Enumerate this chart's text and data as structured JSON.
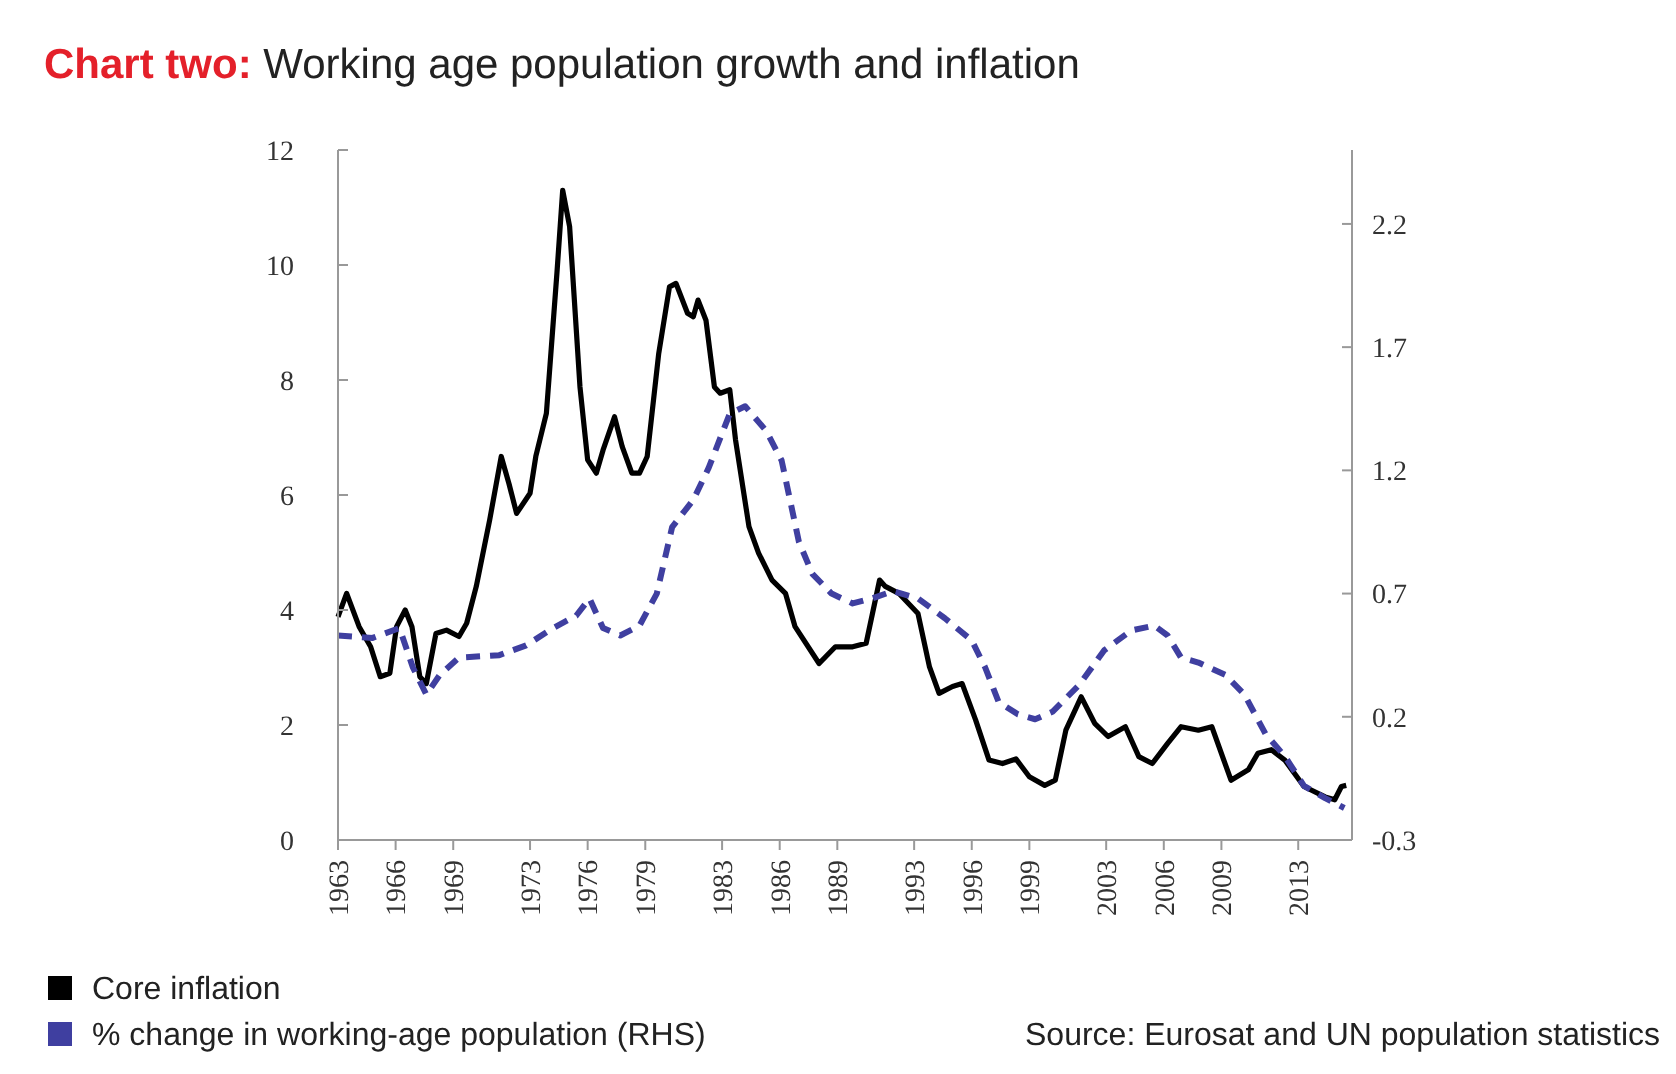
{
  "chart_data": {
    "type": "line",
    "title": "Chart two: Working age population growth and inflation",
    "xlim": [
      1963,
      2015.8
    ],
    "xticks": [
      1963,
      1966,
      1969,
      1973,
      1976,
      1979,
      1983,
      1986,
      1989,
      1993,
      1996,
      1999,
      2003,
      2006,
      2009,
      2013
    ],
    "ylim": [
      0,
      12
    ],
    "yticks": [
      0,
      2,
      4,
      6,
      8,
      10,
      12
    ],
    "y2lim": [
      -0.3,
      2.5
    ],
    "y2ticks": [
      -0.3,
      0.2,
      0.7,
      1.2,
      1.7,
      2.2
    ],
    "legend": "bottom",
    "grid": false,
    "annotations": [
      "Source: Eurosat and UN population statistics"
    ],
    "series": [
      {
        "name": "Core inflation",
        "color": "#000000",
        "line_style": "solid",
        "x": [
          1963.0,
          1963.45,
          1964.1,
          1964.7,
          1965.2,
          1965.7,
          1966.05,
          1966.5,
          1966.85,
          1967.26,
          1967.6,
          1968.1,
          1968.65,
          1969.3,
          1969.7,
          1970.2,
          1970.9,
          1971.5,
          1971.9,
          1972.3,
          1973.0,
          1973.3,
          1973.85,
          1974.4,
          1974.7,
          1975.06,
          1975.6,
          1976.0,
          1976.45,
          1976.8,
          1977.4,
          1977.8,
          1978.3,
          1978.7,
          1979.1,
          1979.7,
          1980.26,
          1980.6,
          1981.2,
          1981.5,
          1981.75,
          1982.16,
          1982.6,
          1982.9,
          1983.4,
          1983.7,
          1984.4,
          1984.9,
          1985.6,
          1986.3,
          1986.8,
          1988.05,
          1988.9,
          1989.8,
          1990.5,
          1991.2,
          1991.5,
          1992.2,
          1993.2,
          1993.8,
          1994.3,
          1995.0,
          1995.5,
          1996.2,
          1996.9,
          1997.6,
          1998.3,
          1999.0,
          1999.8,
          2000.35,
          2000.9,
          2001.7,
          2002.4,
          2003.1,
          2004.0,
          2004.7,
          2005.4,
          2006.2,
          2006.9,
          2007.8,
          2008.5,
          2009.5,
          2010.4,
          2010.9,
          2011.6,
          2012.3,
          2013.3,
          2014.4,
          2014.9,
          2015.25,
          2015.5
        ],
        "values": [
          3.88,
          4.29,
          3.71,
          3.36,
          2.84,
          2.9,
          3.71,
          4.0,
          3.71,
          2.84,
          2.72,
          3.59,
          3.65,
          3.54,
          3.77,
          4.41,
          5.57,
          6.67,
          6.2,
          5.68,
          6.03,
          6.67,
          7.42,
          9.86,
          11.3,
          10.67,
          7.88,
          6.61,
          6.38,
          6.78,
          7.36,
          6.84,
          6.38,
          6.38,
          6.67,
          8.46,
          9.62,
          9.68,
          9.16,
          9.1,
          9.39,
          9.04,
          7.88,
          7.77,
          7.83,
          6.96,
          5.45,
          4.99,
          4.52,
          4.29,
          3.71,
          3.07,
          3.36,
          3.36,
          3.42,
          4.52,
          4.41,
          4.29,
          3.94,
          3.01,
          2.55,
          2.67,
          2.72,
          2.09,
          1.39,
          1.33,
          1.41,
          1.1,
          0.95,
          1.04,
          1.91,
          2.49,
          2.03,
          1.8,
          1.97,
          1.45,
          1.33,
          1.68,
          1.97,
          1.91,
          1.97,
          1.04,
          1.22,
          1.51,
          1.57,
          1.39,
          0.93,
          0.75,
          0.7,
          0.93,
          0.95
        ]
      },
      {
        "name": "% change in working-age population (RHS)",
        "color": "#3f3fa0",
        "line_style": "dashed",
        "axis": "y2",
        "x": [
          1963.0,
          1964.8,
          1966.2,
          1966.9,
          1967.6,
          1968.3,
          1969.3,
          1971.4,
          1972.8,
          1974.2,
          1975.4,
          1976.1,
          1976.8,
          1977.7,
          1978.7,
          1979.6,
          1980.4,
          1981.5,
          1982.3,
          1983.4,
          1984.2,
          1985.3,
          1986.1,
          1987.0,
          1987.7,
          1988.7,
          1989.8,
          1990.8,
          1991.9,
          1993.2,
          1994.6,
          1996.0,
          1996.7,
          1997.4,
          1998.4,
          1999.3,
          2000.2,
          2001.6,
          2002.9,
          2004.3,
          2005.5,
          2006.2,
          2006.9,
          2007.8,
          2009.2,
          2010.2,
          2011.3,
          2012.3,
          2013.3,
          2014.4,
          2015.4
        ],
        "values": [
          0.53,
          0.52,
          0.56,
          0.4,
          0.29,
          0.37,
          0.44,
          0.45,
          0.49,
          0.56,
          0.61,
          0.68,
          0.56,
          0.53,
          0.57,
          0.7,
          0.97,
          1.08,
          1.21,
          1.43,
          1.46,
          1.36,
          1.24,
          0.91,
          0.78,
          0.7,
          0.66,
          0.68,
          0.71,
          0.68,
          0.6,
          0.51,
          0.4,
          0.26,
          0.21,
          0.19,
          0.22,
          0.33,
          0.47,
          0.55,
          0.57,
          0.53,
          0.44,
          0.42,
          0.37,
          0.29,
          0.13,
          0.04,
          -0.08,
          -0.13,
          -0.17
        ]
      }
    ]
  }
}
